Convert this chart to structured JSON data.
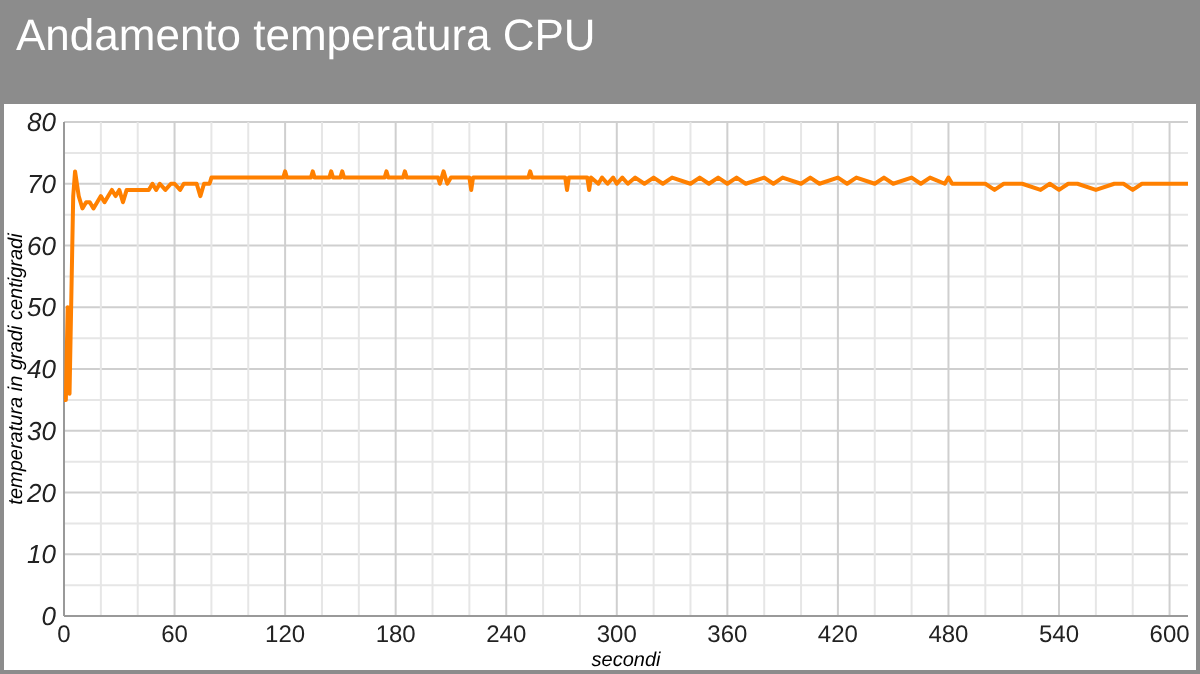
{
  "chart_data": {
    "type": "line",
    "title": "Andamento temperatura CPU",
    "xlabel": "secondi",
    "ylabel": "temperatura in gradi centigradi",
    "x": [
      0,
      1,
      2,
      3,
      5,
      6,
      8,
      10,
      12,
      14,
      16,
      18,
      20,
      22,
      24,
      26,
      28,
      30,
      32,
      34,
      40,
      46,
      48,
      50,
      52,
      55,
      58,
      60,
      63,
      65,
      67,
      70,
      72,
      74,
      76,
      79,
      80,
      100,
      119,
      120,
      121,
      134,
      135,
      136,
      144,
      145,
      146,
      150,
      151,
      152,
      174,
      175,
      176,
      184,
      185,
      186,
      203,
      204,
      206,
      208,
      210,
      211,
      220,
      221,
      222,
      252,
      253,
      254,
      272,
      273,
      274,
      284,
      285,
      286,
      290,
      292,
      295,
      298,
      300,
      303,
      306,
      310,
      315,
      320,
      325,
      330,
      340,
      345,
      350,
      355,
      360,
      365,
      370,
      380,
      385,
      390,
      400,
      405,
      410,
      420,
      425,
      430,
      440,
      445,
      450,
      460,
      465,
      470,
      478,
      480,
      482,
      490,
      500,
      505,
      510,
      515,
      520,
      530,
      535,
      540,
      545,
      550,
      560,
      570,
      575,
      580,
      585,
      590,
      600,
      610
    ],
    "series": [
      {
        "color": "#ff8000",
        "values": [
          35,
          35,
          50,
          36,
          68,
          72,
          68,
          66,
          67,
          67,
          66,
          67,
          68,
          67,
          68,
          69,
          68,
          69,
          67,
          69,
          69,
          69,
          70,
          69,
          70,
          69,
          70,
          70,
          69,
          70,
          70,
          70,
          70,
          68,
          70,
          70,
          71,
          71,
          71,
          72,
          71,
          71,
          72,
          71,
          71,
          72,
          71,
          71,
          72,
          71,
          71,
          72,
          71,
          71,
          72,
          71,
          71,
          70,
          72,
          70,
          71,
          71,
          71,
          69,
          71,
          71,
          72,
          71,
          71,
          69,
          71,
          71,
          69,
          71,
          70,
          71,
          70,
          71,
          70,
          71,
          70,
          71,
          70,
          71,
          70,
          71,
          70,
          71,
          70,
          71,
          70,
          71,
          70,
          71,
          70,
          71,
          70,
          71,
          70,
          71,
          70,
          71,
          70,
          71,
          70,
          71,
          70,
          71,
          70,
          71,
          70,
          70,
          70,
          69,
          70,
          70,
          70,
          69,
          70,
          69,
          70,
          70,
          69,
          70,
          70,
          69,
          70,
          70,
          70,
          70
        ]
      }
    ],
    "xlim": [
      0,
      610
    ],
    "xticks": [
      0,
      {
        "value": 20,
        "label": null
      },
      {
        "value": 40,
        "label": null
      },
      60,
      {
        "value": 80,
        "label": null
      },
      {
        "value": 100,
        "label": null
      },
      120,
      {
        "value": 140,
        "label": null
      },
      {
        "value": 160,
        "label": null
      },
      180,
      {
        "value": 200,
        "label": null
      },
      {
        "value": 220,
        "label": null
      },
      240,
      {
        "value": 260,
        "label": null
      },
      {
        "value": 280,
        "label": null
      },
      300,
      {
        "value": 320,
        "label": null
      },
      {
        "value": 340,
        "label": null
      },
      360,
      {
        "value": 380,
        "label": null
      },
      {
        "value": 400,
        "label": null
      },
      420,
      {
        "value": 440,
        "label": null
      },
      {
        "value": 460,
        "label": null
      },
      480,
      {
        "value": 500,
        "label": null
      },
      {
        "value": 520,
        "label": null
      },
      540,
      {
        "value": 560,
        "label": null
      },
      {
        "value": 580,
        "label": null
      },
      600
    ],
    "ylim": [
      0,
      80
    ],
    "yticks": [
      0,
      {
        "value": 5,
        "label": null
      },
      10,
      {
        "value": 15,
        "label": null
      },
      20,
      {
        "value": 25,
        "label": null
      },
      30,
      {
        "value": 35,
        "label": null
      },
      40,
      {
        "value": 45,
        "label": null
      },
      50,
      {
        "value": 55,
        "label": null
      },
      60,
      {
        "value": 65,
        "label": null
      },
      70,
      {
        "value": 75,
        "label": null
      },
      80
    ],
    "grid": true,
    "marker": "none",
    "line_style": "solid"
  }
}
